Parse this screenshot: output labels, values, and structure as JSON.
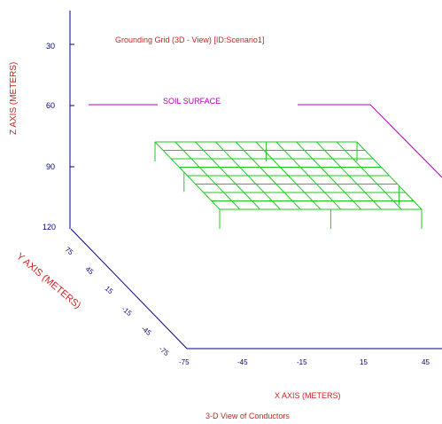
{
  "title": "Grounding Grid (3D - View)   [ID:Scenario1]",
  "soil_surface_label": "SOIL SURFACE",
  "footer": "3-D View of Conductors",
  "axes": {
    "z": {
      "label": "Z AXIS  (METERS)",
      "ticks": [
        "30",
        "60",
        "90",
        "120"
      ]
    },
    "y": {
      "label": "Y AXIS  (METERS)",
      "ticks": [
        "75",
        "45",
        "15",
        "-15",
        "-45",
        "-75"
      ]
    },
    "x": {
      "label": "X AXIS   (METERS)",
      "ticks": [
        "-75",
        "-45",
        "-15",
        "15",
        "45"
      ]
    }
  },
  "colors": {
    "axis": "#000080",
    "axis_label": "#cc2222",
    "soil_surface": "#b000b0",
    "grid": "#22c922"
  }
}
